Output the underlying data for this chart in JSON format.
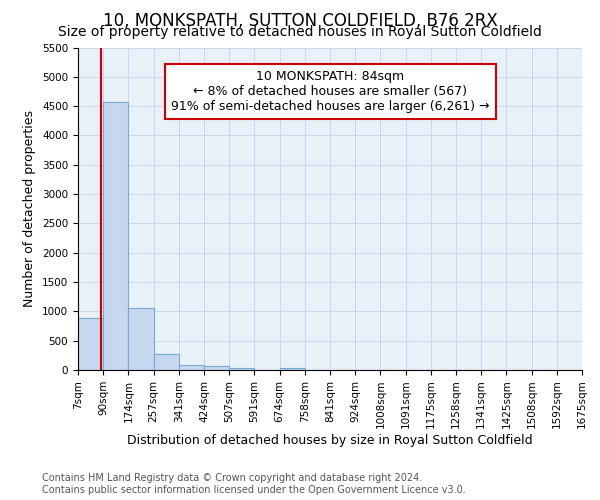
{
  "title": "10, MONKSPATH, SUTTON COLDFIELD, B76 2RX",
  "subtitle": "Size of property relative to detached houses in Royal Sutton Coldfield",
  "xlabel": "Distribution of detached houses by size in Royal Sutton Coldfield",
  "ylabel": "Number of detached properties",
  "footer_line1": "Contains HM Land Registry data © Crown copyright and database right 2024.",
  "footer_line2": "Contains public sector information licensed under the Open Government Licence v3.0.",
  "annotation_line1": "10 MONKSPATH: 84sqm",
  "annotation_line2": "← 8% of detached houses are smaller (567)",
  "annotation_line3": "91% of semi-detached houses are larger (6,261) →",
  "property_size_sqm": 84,
  "bins": [
    7,
    90,
    174,
    257,
    341,
    424,
    507,
    591,
    674,
    758,
    841,
    924,
    1008,
    1091,
    1175,
    1258,
    1341,
    1425,
    1508,
    1592,
    1675
  ],
  "bin_labels": [
    "7sqm",
    "90sqm",
    "174sqm",
    "257sqm",
    "341sqm",
    "424sqm",
    "507sqm",
    "591sqm",
    "674sqm",
    "758sqm",
    "841sqm",
    "924sqm",
    "1008sqm",
    "1091sqm",
    "1175sqm",
    "1258sqm",
    "1341sqm",
    "1425sqm",
    "1508sqm",
    "1592sqm",
    "1675sqm"
  ],
  "bar_heights": [
    880,
    4570,
    1060,
    280,
    80,
    70,
    40,
    0,
    40,
    0,
    0,
    0,
    0,
    0,
    0,
    0,
    0,
    0,
    0,
    0
  ],
  "bar_color": "#c5d8f0",
  "bar_edge_color": "#7aaad4",
  "redline_color": "#cc0000",
  "annotation_box_color": "#cc0000",
  "annotation_bg": "#ffffff",
  "ylim": [
    0,
    5500
  ],
  "yticks": [
    0,
    500,
    1000,
    1500,
    2000,
    2500,
    3000,
    3500,
    4000,
    4500,
    5000,
    5500
  ],
  "grid_color": "#c8d8ec",
  "bg_color": "#ffffff",
  "plot_bg_color": "#e8f0f8",
  "title_fontsize": 12,
  "subtitle_fontsize": 10,
  "label_fontsize": 9,
  "tick_fontsize": 7.5,
  "footer_fontsize": 7,
  "annot_fontsize": 9
}
